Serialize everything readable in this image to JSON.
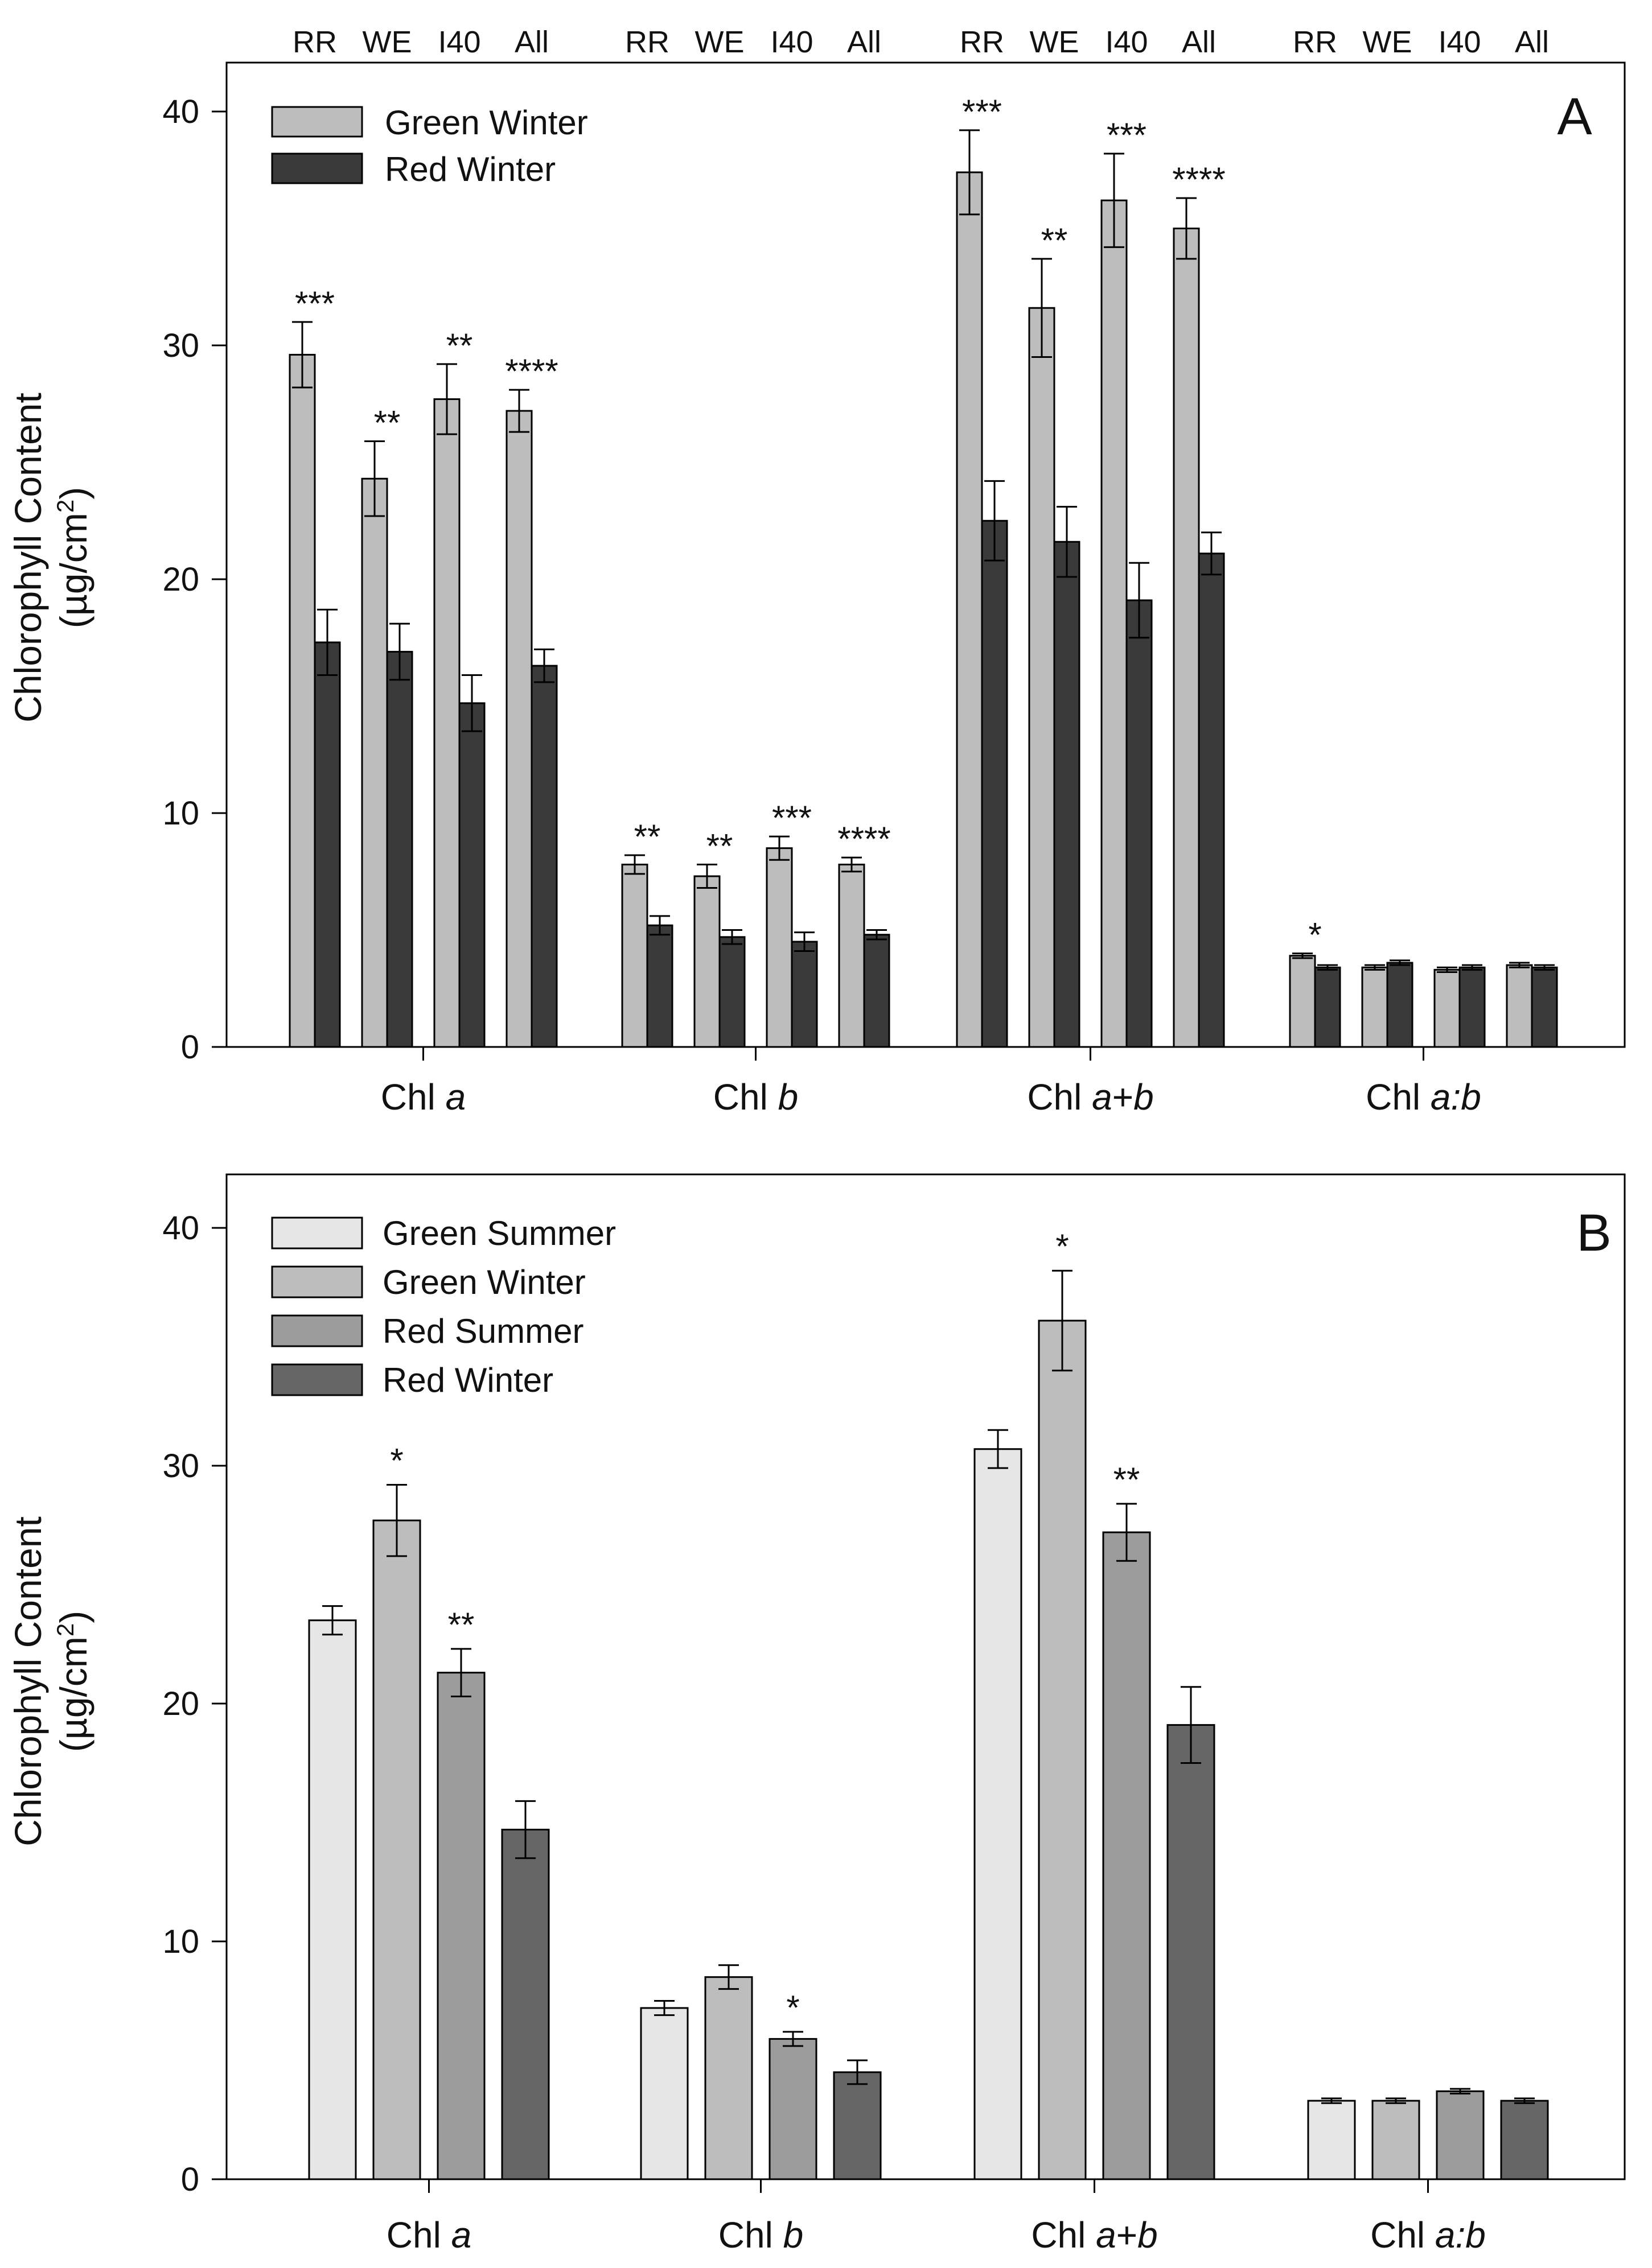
{
  "figure": {
    "panels": [
      {
        "letter": "A",
        "ylabel_line1": "Chlorophyll Content",
        "ylabel_line2_pre": "(µg/cm",
        "ylabel_line2_sup": "2",
        "ylabel_line2_post": ")",
        "site_labels": [
          "RR",
          "WE",
          "I40",
          "All"
        ],
        "category_labels": [
          {
            "pre": "Chl ",
            "ital": "a",
            "post": ""
          },
          {
            "pre": "Chl ",
            "ital": "b",
            "post": ""
          },
          {
            "pre": "Chl ",
            "ital": "a",
            "post": "+",
            "ital2": "b"
          },
          {
            "pre": "Chl ",
            "ital": "a:b",
            "post": ""
          }
        ]
      },
      {
        "letter": "B",
        "ylabel_line1": "Chlorophyll Content",
        "ylabel_line2_pre": "(µg/cm",
        "ylabel_line2_sup": "2",
        "ylabel_line2_post": ")",
        "category_labels": [
          {
            "pre": "Chl ",
            "ital": "a",
            "post": ""
          },
          {
            "pre": "Chl ",
            "ital": "b",
            "post": ""
          },
          {
            "pre": "Chl ",
            "ital": "a",
            "post": "+",
            "ital2": "b"
          },
          {
            "pre": "Chl ",
            "ital": "a:b",
            "post": ""
          }
        ]
      }
    ]
  },
  "chart_data": [
    {
      "type": "bar",
      "panel": "A",
      "categories": [
        "Chl a",
        "Chl b",
        "Chl a+b",
        "Chl a:b"
      ],
      "subgroups": [
        "RR",
        "WE",
        "I40",
        "All"
      ],
      "ylim": [
        0,
        42
      ],
      "yticks": [
        0,
        10,
        20,
        30,
        40
      ],
      "grid": false,
      "legend_position": "top-left",
      "series": [
        {
          "name": "Green Winter",
          "color": "#bdbdbd",
          "values": [
            [
              29.6,
              24.3,
              27.7,
              27.2
            ],
            [
              7.8,
              7.3,
              8.5,
              7.8
            ],
            [
              37.4,
              31.6,
              36.2,
              35.0
            ],
            [
              3.9,
              3.4,
              3.3,
              3.5
            ]
          ],
          "errors": [
            [
              1.4,
              1.6,
              1.5,
              0.9
            ],
            [
              0.4,
              0.5,
              0.5,
              0.3
            ],
            [
              1.8,
              2.1,
              2.0,
              1.3
            ],
            [
              0.1,
              0.1,
              0.1,
              0.1
            ]
          ]
        },
        {
          "name": "Red Winter",
          "color": "#3a3a3a",
          "values": [
            [
              17.3,
              16.9,
              14.7,
              16.3
            ],
            [
              5.2,
              4.7,
              4.5,
              4.8
            ],
            [
              22.5,
              21.6,
              19.1,
              21.1
            ],
            [
              3.4,
              3.6,
              3.4,
              3.4
            ]
          ],
          "errors": [
            [
              1.4,
              1.2,
              1.2,
              0.7
            ],
            [
              0.4,
              0.3,
              0.4,
              0.2
            ],
            [
              1.7,
              1.5,
              1.6,
              0.9
            ],
            [
              0.1,
              0.1,
              0.1,
              0.1
            ]
          ]
        }
      ],
      "annotations": [
        [
          [
            "***",
            "**",
            "**",
            "****"
          ],
          [
            "**",
            "**",
            "***",
            "****"
          ],
          [
            "***",
            "**",
            "***",
            "****"
          ],
          [
            "*",
            "",
            "",
            ""
          ]
        ]
      ]
    },
    {
      "type": "bar",
      "panel": "B",
      "categories": [
        "Chl a",
        "Chl b",
        "Chl a+b",
        "Chl a:b"
      ],
      "ylim": [
        0,
        42
      ],
      "yticks": [
        0,
        10,
        20,
        30,
        40
      ],
      "grid": false,
      "legend_position": "top-left",
      "series": [
        {
          "name": "Green Summer",
          "color": "#e6e6e6",
          "values": [
            23.5,
            7.2,
            30.7,
            3.3
          ],
          "errors": [
            0.6,
            0.3,
            0.8,
            0.1
          ]
        },
        {
          "name": "Green Winter",
          "color": "#bdbdbd",
          "values": [
            27.7,
            8.5,
            36.1,
            3.3
          ],
          "errors": [
            1.5,
            0.5,
            2.1,
            0.1
          ]
        },
        {
          "name": "Red Summer",
          "color": "#9c9c9c",
          "values": [
            21.3,
            5.9,
            27.2,
            3.7
          ],
          "errors": [
            1.0,
            0.3,
            1.2,
            0.1
          ]
        },
        {
          "name": "Red Winter",
          "color": "#666666",
          "values": [
            14.7,
            4.5,
            19.1,
            3.3
          ],
          "errors": [
            1.2,
            0.5,
            1.6,
            0.1
          ]
        }
      ],
      "annotations": [
        {
          "category": 0,
          "series": 1,
          "text": "*"
        },
        {
          "category": 0,
          "series": 2,
          "text": "**"
        },
        {
          "category": 1,
          "series": 2,
          "text": "*"
        },
        {
          "category": 2,
          "series": 1,
          "text": "*"
        },
        {
          "category": 2,
          "series": 2,
          "text": "**"
        }
      ]
    }
  ]
}
